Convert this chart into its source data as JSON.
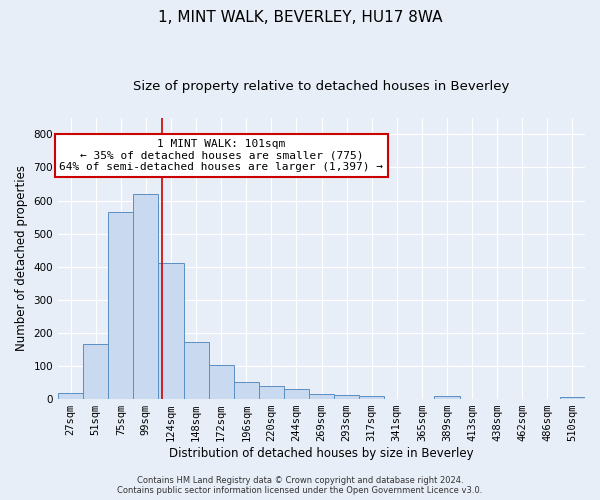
{
  "title": "1, MINT WALK, BEVERLEY, HU17 8WA",
  "subtitle": "Size of property relative to detached houses in Beverley",
  "xlabel": "Distribution of detached houses by size in Beverley",
  "ylabel": "Number of detached properties",
  "categories": [
    "27sqm",
    "51sqm",
    "75sqm",
    "99sqm",
    "124sqm",
    "148sqm",
    "172sqm",
    "196sqm",
    "220sqm",
    "244sqm",
    "269sqm",
    "293sqm",
    "317sqm",
    "341sqm",
    "365sqm",
    "389sqm",
    "413sqm",
    "438sqm",
    "462sqm",
    "486sqm",
    "510sqm"
  ],
  "values": [
    18,
    165,
    565,
    620,
    412,
    172,
    103,
    52,
    40,
    31,
    14,
    13,
    10,
    0,
    0,
    8,
    0,
    0,
    0,
    0,
    7
  ],
  "bar_color": "#c9d9f0",
  "bar_edge_color": "#5a8fc3",
  "red_line_x": 3.65,
  "annotation_text": "1 MINT WALK: 101sqm\n← 35% of detached houses are smaller (775)\n64% of semi-detached houses are larger (1,397) →",
  "annotation_box_color": "#ffffff",
  "annotation_box_edge_color": "#cc0000",
  "ylim": [
    0,
    850
  ],
  "yticks": [
    0,
    100,
    200,
    300,
    400,
    500,
    600,
    700,
    800
  ],
  "background_color": "#e8eef8",
  "grid_color": "#ffffff",
  "footer_line1": "Contains HM Land Registry data © Crown copyright and database right 2024.",
  "footer_line2": "Contains public sector information licensed under the Open Government Licence v3.0.",
  "title_fontsize": 11,
  "subtitle_fontsize": 9.5,
  "axis_label_fontsize": 8.5,
  "tick_fontsize": 7.5,
  "footer_fontsize": 6.0
}
